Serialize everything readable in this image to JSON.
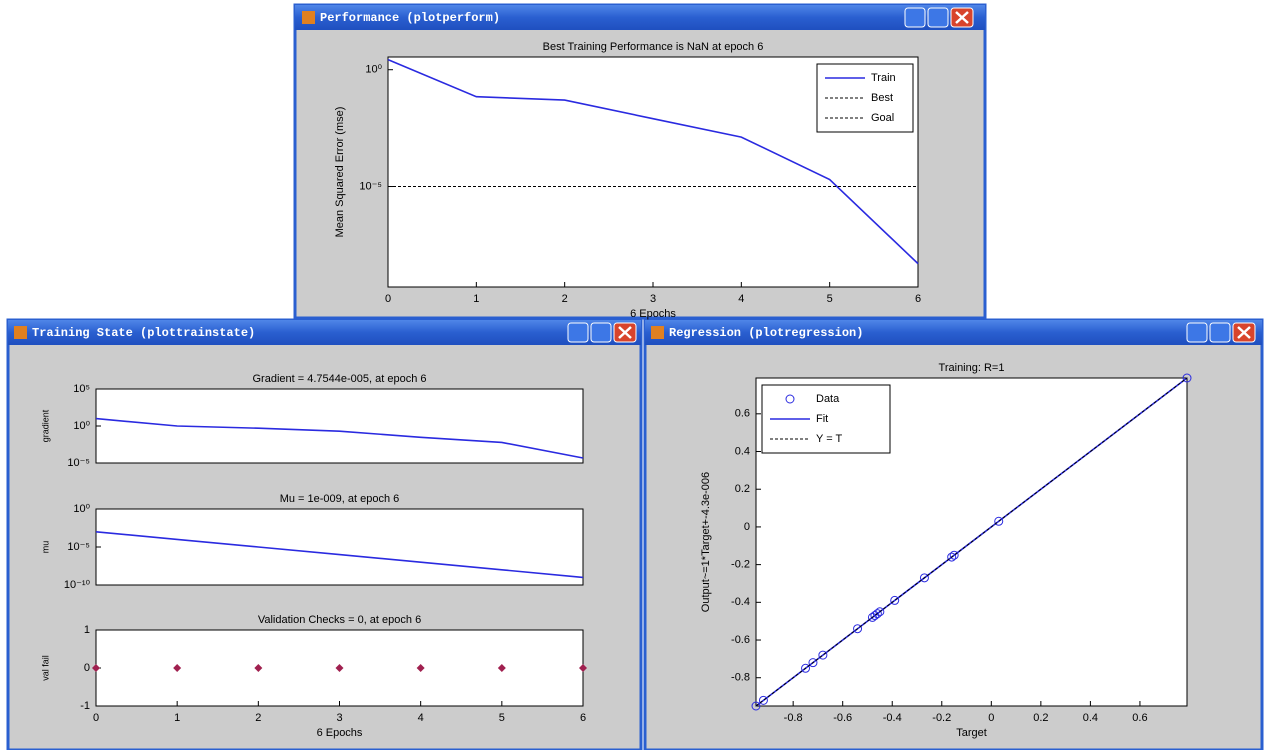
{
  "windows": [
    {
      "title": "Performance (plotperform)"
    },
    {
      "title": "Training State (plottrainstate)"
    },
    {
      "title": "Regression (plotregression)"
    }
  ],
  "chart_data": [
    {
      "type": "line",
      "title": "Best Training Performance is NaN at epoch 6",
      "x_label": "6 Epochs",
      "y_label": "Mean Squared Error  (mse)",
      "yscale": "log",
      "x": [
        0,
        1,
        2,
        3,
        4,
        5,
        6
      ],
      "xlim": [
        0,
        6
      ],
      "xticks": [
        0,
        1,
        2,
        3,
        4,
        5,
        6
      ],
      "ylim": [
        5e-10,
        3.5
      ],
      "yticks": [
        {
          "value": 1,
          "label": "10⁰"
        },
        {
          "value": 1e-05,
          "label": "10⁻⁵"
        }
      ],
      "legend": "upper right",
      "series": [
        {
          "name": "Train",
          "color": "#2a2ae0",
          "linestyle": "solid",
          "values": [
            2.7,
            0.07,
            0.05,
            0.008,
            0.0013,
            2e-05,
            5e-09
          ]
        },
        {
          "name": "Best",
          "color": "#000000",
          "linestyle": "dotted",
          "values": [
            null,
            null,
            null,
            null,
            null,
            null,
            null
          ]
        },
        {
          "name": "Goal",
          "color": "#000000",
          "linestyle": "dotted",
          "values": [
            1e-05,
            1e-05,
            1e-05,
            1e-05,
            1e-05,
            1e-05,
            1e-05
          ]
        }
      ]
    },
    {
      "type": "line",
      "title": "Gradient = 4.7544e-005, at epoch 6",
      "y_label": "gradient",
      "yscale": "log",
      "x": [
        0,
        1,
        2,
        3,
        4,
        5,
        6
      ],
      "xlim": [
        0,
        6
      ],
      "ylim": [
        1e-05,
        100000.0
      ],
      "yticks": [
        {
          "value": 100000.0,
          "label": "10⁵"
        },
        {
          "value": 1,
          "label": "10⁰"
        },
        {
          "value": 1e-05,
          "label": "10⁻⁵"
        }
      ],
      "color": "#2a2ae0",
      "linestyle": "solid",
      "values": [
        10,
        1,
        0.5,
        0.2,
        0.03,
        0.006,
        4.7544e-05
      ]
    },
    {
      "type": "line",
      "title": "Mu = 1e-009, at epoch 6",
      "y_label": "mu",
      "yscale": "log",
      "x": [
        0,
        1,
        2,
        3,
        4,
        5,
        6
      ],
      "xlim": [
        0,
        6
      ],
      "ylim": [
        1e-10,
        1
      ],
      "yticks": [
        {
          "value": 1,
          "label": "10⁰"
        },
        {
          "value": 1e-05,
          "label": "10⁻⁵"
        },
        {
          "value": 1e-10,
          "label": "10⁻¹⁰"
        }
      ],
      "color": "#2a2ae0",
      "linestyle": "solid",
      "values": [
        0.001,
        0.0001,
        1e-05,
        1e-06,
        1e-07,
        1e-08,
        1e-09
      ]
    },
    {
      "type": "line",
      "title": "Validation Checks = 0, at epoch 6",
      "y_label": "val fail",
      "x_label": "6 Epochs",
      "x": [
        0,
        1,
        2,
        3,
        4,
        5,
        6
      ],
      "xlim": [
        0,
        6
      ],
      "xticks": [
        0,
        1,
        2,
        3,
        4,
        5,
        6
      ],
      "ylim": [
        -1,
        1
      ],
      "yticks": [
        -1,
        0,
        1
      ],
      "color": "#a0204f",
      "linestyle": "none",
      "marker": "diamond",
      "values": [
        0,
        0,
        0,
        0,
        0,
        0,
        0
      ]
    },
    {
      "type": "scatter",
      "title": "Training: R=1",
      "x_label": "Target",
      "y_label": "Output~=1*Target+-4.3e-006",
      "x": [
        -0.95,
        -0.92,
        -0.75,
        -0.72,
        -0.68,
        -0.54,
        -0.48,
        -0.47,
        -0.46,
        -0.45,
        -0.39,
        -0.27,
        -0.16,
        -0.15,
        0.03,
        0.79
      ],
      "xlim": [
        -0.95,
        0.79
      ],
      "xticks": [
        -0.8,
        -0.6,
        -0.4,
        -0.2,
        0,
        0.2,
        0.4,
        0.6
      ],
      "ylim": [
        -0.95,
        0.79
      ],
      "yticks": [
        -0.8,
        -0.6,
        -0.4,
        -0.2,
        0,
        0.2,
        0.4,
        0.6
      ],
      "legend": "upper left",
      "series": [
        {
          "name": "Data",
          "color": "#2a2ae0",
          "linestyle": "none",
          "marker": "circle",
          "values": [
            -0.95,
            -0.92,
            -0.75,
            -0.72,
            -0.68,
            -0.54,
            -0.48,
            -0.47,
            -0.46,
            -0.45,
            -0.39,
            -0.27,
            -0.16,
            -0.15,
            0.03,
            0.79
          ]
        },
        {
          "name": "Fit",
          "color": "#2a2ae0",
          "linestyle": "solid",
          "values": [
            -0.95,
            -0.92,
            -0.75,
            -0.72,
            -0.68,
            -0.54,
            -0.48,
            -0.47,
            -0.46,
            -0.45,
            -0.39,
            -0.27,
            -0.16,
            -0.15,
            0.03,
            0.79
          ]
        },
        {
          "name": "Y = T",
          "color": "#000000",
          "linestyle": "dotted",
          "values": [
            -0.95,
            -0.92,
            -0.75,
            -0.72,
            -0.68,
            -0.54,
            -0.48,
            -0.47,
            -0.46,
            -0.45,
            -0.39,
            -0.27,
            -0.16,
            -0.15,
            0.03,
            0.79
          ]
        }
      ]
    }
  ]
}
